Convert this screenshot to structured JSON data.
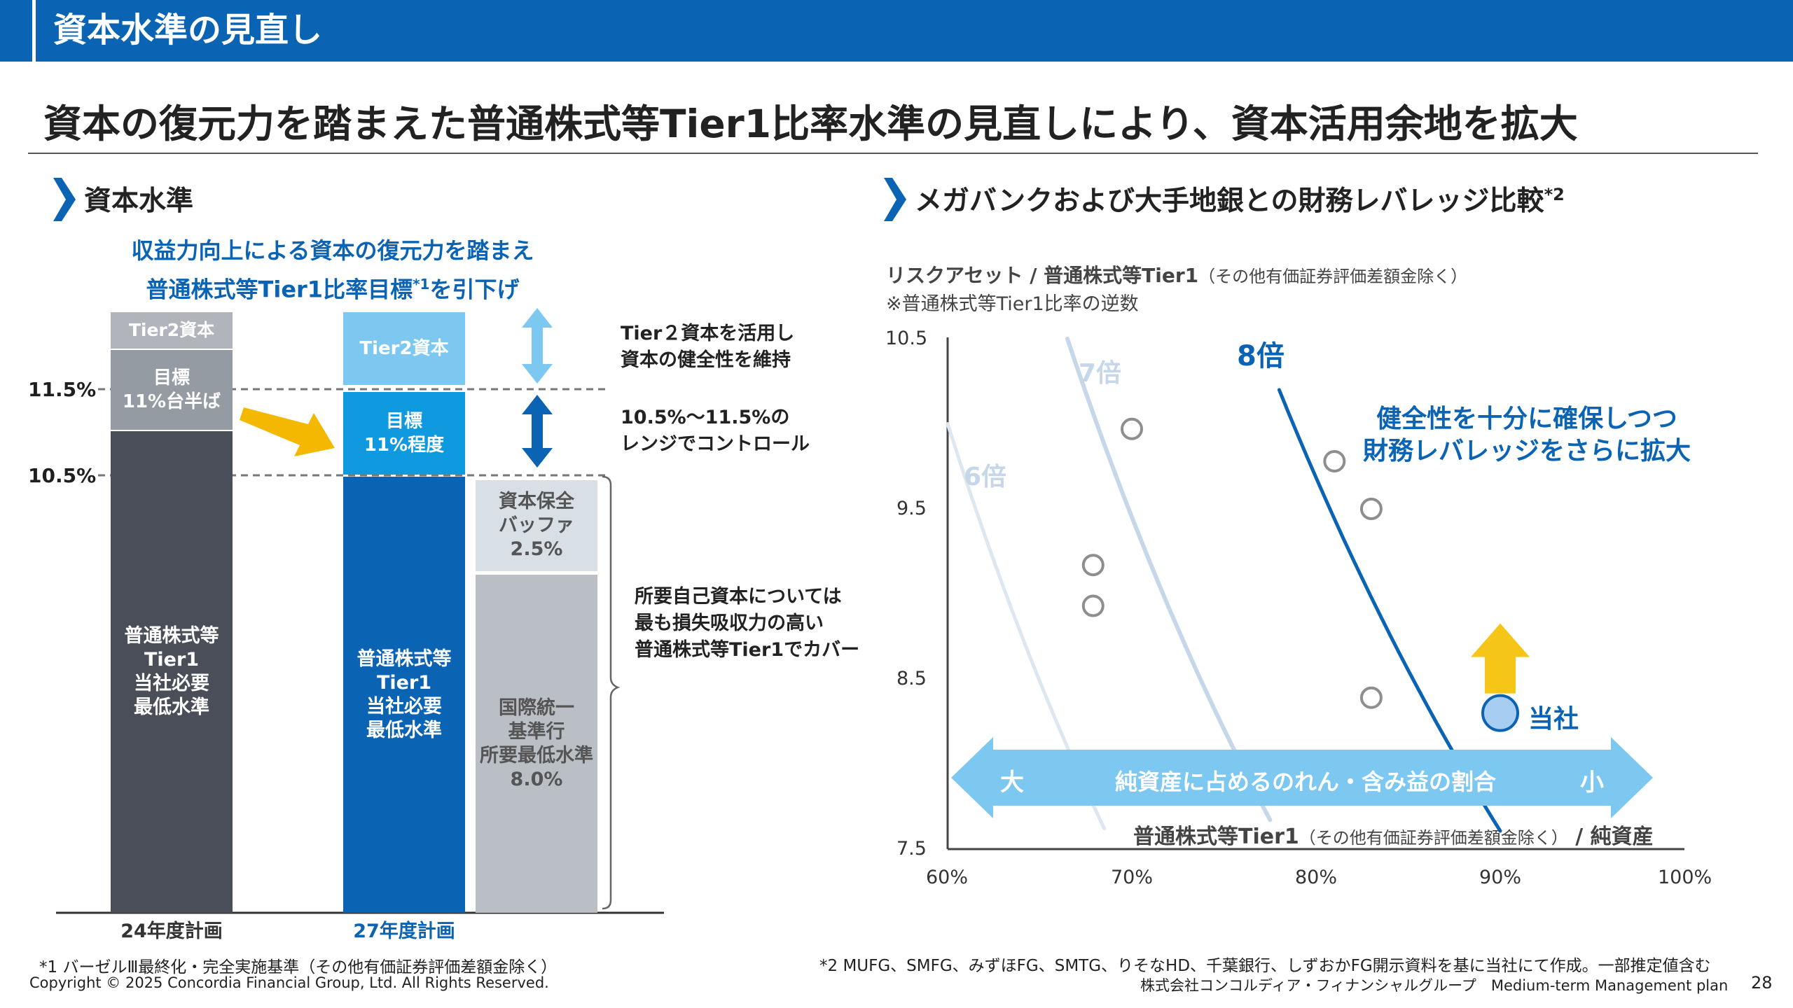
{
  "header": {
    "title": "資本水準の見直し"
  },
  "headline": "資本の復元力を踏まえた普通株式等Tier1比率水準の見直しにより、資本活用余地を拡大",
  "left": {
    "section_title": "資本水準",
    "note_line1": "収益力向上による資本の復元力を踏まえ",
    "note_line2": "普通株式等Tier1比率目標",
    "note_sup": "*1",
    "note_line2b": "を引下げ",
    "level_upper": "11.5%",
    "level_lower": "10.5%",
    "bar1": {
      "tier2": "Tier2資本",
      "target1": "目標",
      "target2": "11%台半ば",
      "cet1_1": "普通株式等",
      "cet1_2": "Tier1",
      "cet1_3": "当社必要",
      "cet1_4": "最低水準",
      "label": "24年度計画"
    },
    "bar2": {
      "tier2": "Tier2資本",
      "target1": "目標",
      "target2": "11%程度",
      "cet1_1": "普通株式等",
      "cet1_2": "Tier1",
      "cet1_3": "当社必要",
      "cet1_4": "最低水準",
      "label": "27年度計画"
    },
    "bar3": {
      "buffer1": "資本保全",
      "buffer2": "バッファ",
      "buffer3": "2.5%",
      "min1": "国際統一",
      "min2": "基準行",
      "min3": "所要最低水準",
      "min4": "8.0%"
    },
    "anno1_1": "Tier２資本を活用し",
    "anno1_2": "資本の健全性を維持",
    "anno2_1": "10.5%～11.5%の",
    "anno2_2": "レンジでコントロール",
    "anno3_1": "所要自己資本については",
    "anno3_2": "最も損失吸収力の高い",
    "anno3_3": "普通株式等Tier1でカバー"
  },
  "right": {
    "section_title": "メガバンクおよび大手地銀との財務レバレッジ比較",
    "section_sup": "*2",
    "ylabel_main": "リスクアセット / 普通株式等Tier1",
    "ylabel_small": "（その他有価証券評価差額金除く）",
    "ylabel_note": "※普通株式等Tier1比率の逆数",
    "curve_6": "6倍",
    "curve_7": "7倍",
    "curve_8": "8倍",
    "callout1": "健全性を十分に確保しつつ",
    "callout2": "財務レバレッジをさらに拡大",
    "company_label": "当社",
    "arrow_left": "大",
    "arrow_mid": "純資産に占めるのれん・含み益の割合",
    "arrow_right": "小",
    "xlabel_main": "普通株式等Tier1",
    "xlabel_small": "（その他有価証券評価差額金除く）",
    "xlabel_tail": "/ 純資産"
  },
  "chart_data": {
    "type": "scatter",
    "title": "メガバンクおよび大手地銀との財務レバレッジ比較",
    "xlabel": "普通株式等Tier1（その他有価証券評価差額金除く） / 純資産",
    "ylabel": "リスクアセット / 普通株式等Tier1",
    "xlim": [
      60,
      100
    ],
    "ylim": [
      7.5,
      10.5
    ],
    "x_ticks": [
      "60%",
      "70%",
      "80%",
      "90%",
      "100%"
    ],
    "y_ticks": [
      "10.5",
      "9.5",
      "8.5",
      "7.5"
    ],
    "peers": [
      {
        "x": 70,
        "y": 9.97
      },
      {
        "x": 67.9,
        "y": 9.17
      },
      {
        "x": 67.9,
        "y": 8.93
      },
      {
        "x": 81,
        "y": 9.78
      },
      {
        "x": 83,
        "y": 9.5
      },
      {
        "x": 83,
        "y": 8.39
      }
    ],
    "company": {
      "x": 90,
      "y": 8.3
    },
    "leverage_curves": [
      {
        "name": "6倍",
        "multiple": 6
      },
      {
        "name": "7倍",
        "multiple": 7
      },
      {
        "name": "8倍",
        "multiple": 8
      }
    ]
  },
  "footer": {
    "note1": "*1 バーゼルⅢ最終化・完全実施基準（その他有価証券評価差額金除く）",
    "note2": "*2 MUFG、SMFG、みずほFG、SMTG、りそなHD、千葉銀行、しずおかFG開示資料を基に当社にて作成。一部推定値含む",
    "copyright": "Copyright © 2025 Concordia Financial Group, Ltd. All Rights Reserved.",
    "company": "株式会社コンコルディア・フィナンシャルグループ　Medium-term Management plan",
    "page": "28"
  },
  "colors": {
    "brand": "#0a63b3",
    "dark": "#4a4e58",
    "gray": "#959ba3",
    "tier2_light": "#7cc8f0",
    "arrow": "#f5b800"
  }
}
